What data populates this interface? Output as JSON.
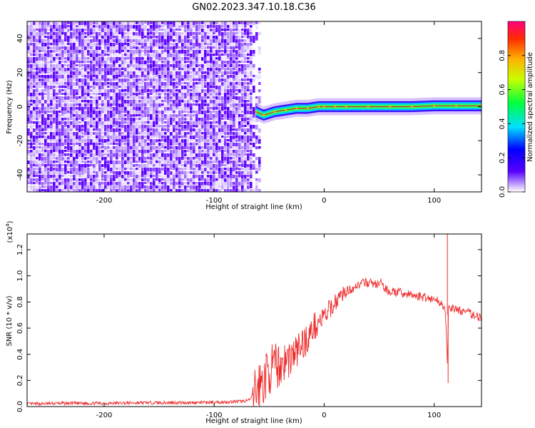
{
  "title": "GN02.2023.347.10.18.C36",
  "chart_data": [
    {
      "type": "heatmap",
      "xlabel": "Height of straight line (km)",
      "ylabel": "Frequency (Hz)",
      "xlim": [
        -270,
        143
      ],
      "ylim": [
        -50,
        50
      ],
      "xticks": [
        -200,
        -100,
        0,
        100
      ],
      "yticks": [
        40,
        20,
        0,
        -20,
        -40
      ],
      "noise_region_x": [
        -270,
        -62
      ],
      "signal_ridge": {
        "x": [
          -62,
          -55,
          -45,
          -35,
          -25,
          -15,
          -5,
          0,
          10,
          20,
          40,
          60,
          80,
          100,
          120,
          143
        ],
        "y": [
          -3,
          -5,
          -3,
          -2,
          -1,
          -1,
          0,
          0,
          0,
          0,
          0,
          0,
          0,
          0.5,
          0.5,
          0.5
        ]
      },
      "colorbar": {
        "label": "Normalized spectral amplitude",
        "range": [
          0,
          1
        ],
        "ticks": [
          "0.0",
          "0.2",
          "0.4",
          "0.6",
          "0.8"
        ]
      }
    },
    {
      "type": "line",
      "xlabel": "Height of straight line (km)",
      "ylabel": "SNR (10 * v/v)",
      "y_multiplier": "(x10",
      "y_multiplier_exp": "4",
      "y_multiplier_close": ")",
      "xlim": [
        -270,
        143
      ],
      "ylim": [
        0,
        1.32
      ],
      "xticks": [
        -200,
        -100,
        0,
        100
      ],
      "yticks": [
        "0.0",
        "0.2",
        "0.4",
        "0.6",
        "0.8",
        "1.0",
        "1.2"
      ],
      "series": [
        {
          "color": "#ee2a2a",
          "x": [
            -270,
            -240,
            -200,
            -160,
            -120,
            -90,
            -75,
            -68,
            -62,
            -55,
            -50,
            -45,
            -40,
            -35,
            -30,
            -25,
            -20,
            -15,
            -10,
            -5,
            0,
            5,
            10,
            15,
            20,
            25,
            30,
            35,
            40,
            45,
            50,
            52,
            55,
            60,
            70,
            80,
            90,
            100,
            105,
            108,
            110,
            111,
            112,
            113,
            114,
            115,
            120,
            130,
            143
          ],
          "y": [
            0.02,
            0.025,
            0.025,
            0.03,
            0.03,
            0.035,
            0.04,
            0.05,
            0.12,
            0.2,
            0.28,
            0.3,
            0.32,
            0.35,
            0.38,
            0.42,
            0.48,
            0.52,
            0.6,
            0.65,
            0.68,
            0.74,
            0.8,
            0.85,
            0.88,
            0.9,
            0.93,
            0.94,
            0.95,
            0.94,
            0.93,
            0.95,
            0.9,
            0.88,
            0.87,
            0.85,
            0.84,
            0.82,
            0.8,
            0.78,
            0.74,
            0.55,
            0.3,
            0.72,
            0.78,
            0.76,
            0.74,
            0.72,
            0.68
          ]
        }
      ]
    }
  ]
}
